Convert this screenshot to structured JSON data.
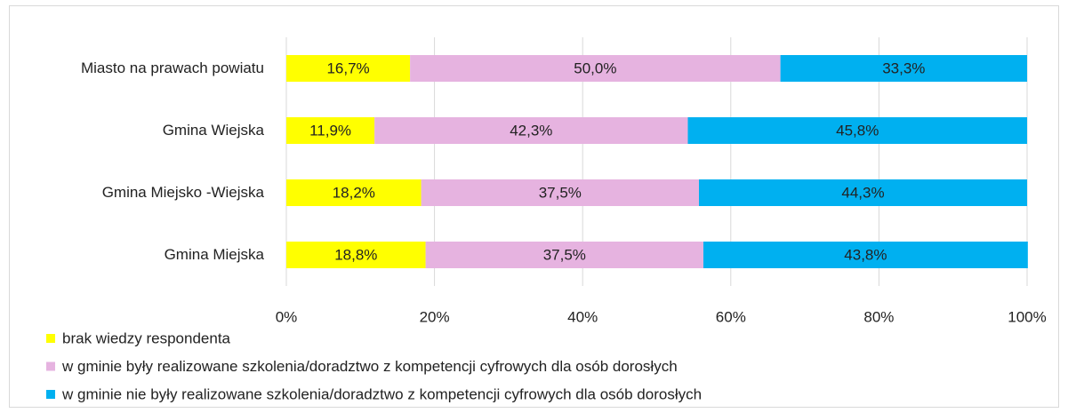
{
  "chart_data": {
    "type": "stacked-bar-horizontal",
    "categories": [
      "Miasto na prawach powiatu",
      "Gmina Wiejska",
      "Gmina Miejsko -Wiejska",
      "Gmina Miejska"
    ],
    "series": [
      {
        "name": "brak wiedzy respondenta",
        "color": "#ffff00",
        "values": [
          16.7,
          11.9,
          18.2,
          18.8
        ],
        "value_labels": [
          "16,7%",
          "11,9%",
          "18,2%",
          "18,8%"
        ]
      },
      {
        "name": "w gminie były realizowane szkolenia/doradztwo z kompetencji cyfrowych dla osób dorosłych",
        "color": "#e6b3e0",
        "values": [
          50.0,
          42.3,
          37.5,
          37.5
        ],
        "value_labels": [
          "50,0%",
          "42,3%",
          "37,5%",
          "37,5%"
        ]
      },
      {
        "name": "w gminie nie były realizowane szkolenia/doradztwo z kompetencji cyfrowych dla osób dorosłych",
        "color": "#00b0f0",
        "values": [
          33.3,
          45.8,
          44.3,
          43.8
        ],
        "value_labels": [
          "33,3%",
          "45,8%",
          "44,3%",
          "43,8%"
        ]
      }
    ],
    "xlim": [
      0,
      100
    ],
    "xticks": [
      {
        "value": 0,
        "label": "0%"
      },
      {
        "value": 20,
        "label": "20%"
      },
      {
        "value": 40,
        "label": "40%"
      },
      {
        "value": 60,
        "label": "60%"
      },
      {
        "value": 80,
        "label": "80%"
      },
      {
        "value": 100,
        "label": "100%"
      }
    ],
    "grid": true,
    "legend": "bottom-left"
  }
}
